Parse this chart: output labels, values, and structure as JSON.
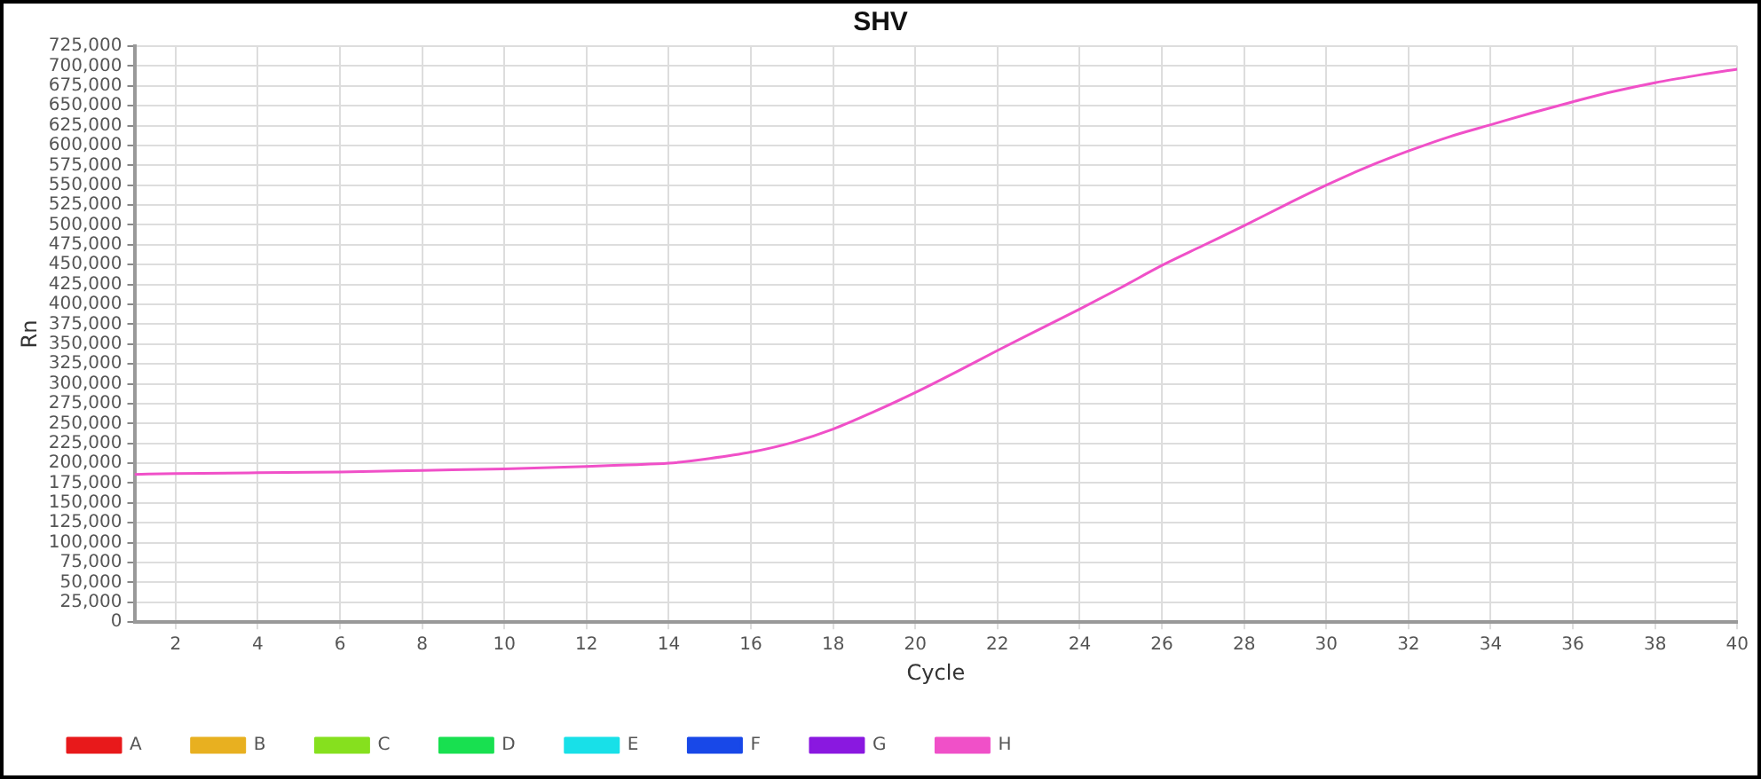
{
  "chart_data": {
    "type": "line",
    "title": "SHV",
    "xlabel": "Cycle",
    "ylabel": "Rn",
    "x": [
      1,
      2,
      4,
      6,
      8,
      10,
      12,
      13,
      14,
      15,
      16,
      17,
      18,
      19,
      20,
      21,
      22,
      23,
      24,
      25,
      26,
      27,
      28,
      29,
      30,
      31,
      32,
      33,
      34,
      35,
      36,
      37,
      38,
      39,
      40
    ],
    "series": [
      {
        "name": "A",
        "color": "#e8191b",
        "values": [
          null,
          null,
          null,
          null,
          null,
          null,
          null,
          null,
          null,
          null,
          null,
          null,
          null,
          null,
          null,
          null,
          null,
          null,
          null,
          null,
          null,
          null,
          null,
          null,
          null,
          null,
          null,
          null,
          null,
          null,
          null,
          null,
          null,
          null,
          null
        ]
      },
      {
        "name": "B",
        "color": "#e8b020",
        "values": [
          null,
          null,
          null,
          null,
          null,
          null,
          null,
          null,
          null,
          null,
          null,
          null,
          null,
          null,
          null,
          null,
          null,
          null,
          null,
          null,
          null,
          null,
          null,
          null,
          null,
          null,
          null,
          null,
          null,
          null,
          null,
          null,
          null,
          null,
          null
        ]
      },
      {
        "name": "C",
        "color": "#86e01e",
        "values": [
          null,
          null,
          null,
          null,
          null,
          null,
          null,
          null,
          null,
          null,
          null,
          null,
          null,
          null,
          null,
          null,
          null,
          null,
          null,
          null,
          null,
          null,
          null,
          null,
          null,
          null,
          null,
          null,
          null,
          null,
          null,
          null,
          null,
          null,
          null
        ]
      },
      {
        "name": "D",
        "color": "#18e050",
        "values": [
          null,
          null,
          null,
          null,
          null,
          null,
          null,
          null,
          null,
          null,
          null,
          null,
          null,
          null,
          null,
          null,
          null,
          null,
          null,
          null,
          null,
          null,
          null,
          null,
          null,
          null,
          null,
          null,
          null,
          null,
          null,
          null,
          null,
          null,
          null
        ]
      },
      {
        "name": "E",
        "color": "#18e0e8",
        "values": [
          null,
          null,
          null,
          null,
          null,
          null,
          null,
          null,
          null,
          null,
          null,
          null,
          null,
          null,
          null,
          null,
          null,
          null,
          null,
          null,
          null,
          null,
          null,
          null,
          null,
          null,
          null,
          null,
          null,
          null,
          null,
          null,
          null,
          null,
          null
        ]
      },
      {
        "name": "F",
        "color": "#1848e8",
        "values": [
          null,
          null,
          null,
          null,
          null,
          null,
          null,
          null,
          null,
          null,
          null,
          null,
          null,
          null,
          null,
          null,
          null,
          null,
          null,
          null,
          null,
          null,
          null,
          null,
          null,
          null,
          null,
          null,
          null,
          null,
          null,
          null,
          null,
          null,
          null
        ]
      },
      {
        "name": "G",
        "color": "#8a18e0",
        "values": [
          null,
          null,
          null,
          null,
          null,
          null,
          null,
          null,
          null,
          null,
          null,
          null,
          null,
          null,
          null,
          null,
          null,
          null,
          null,
          null,
          null,
          null,
          null,
          null,
          null,
          null,
          null,
          null,
          null,
          null,
          null,
          null,
          null,
          null,
          null
        ]
      },
      {
        "name": "H",
        "color": "#f050c8",
        "values": [
          186000,
          187000,
          188000,
          189000,
          191000,
          193000,
          196000,
          198000,
          200000,
          206000,
          214000,
          226000,
          243000,
          265000,
          289000,
          315000,
          342000,
          368000,
          394000,
          421000,
          449000,
          474000,
          499000,
          525000,
          550000,
          573000,
          593000,
          611000,
          626000,
          641000,
          655000,
          668000,
          679000,
          688000,
          696000
        ]
      }
    ],
    "xlim": [
      1,
      40
    ],
    "xticks": [
      2,
      4,
      6,
      8,
      10,
      12,
      14,
      16,
      18,
      20,
      22,
      24,
      26,
      28,
      30,
      32,
      34,
      36,
      38,
      40
    ],
    "ylim": [
      0,
      725000
    ],
    "yticks": [
      0,
      {
        "value": 25000,
        "label": "25,000"
      },
      {
        "value": 50000,
        "label": "50,000"
      },
      {
        "value": 75000,
        "label": "75,000"
      },
      {
        "value": 100000,
        "label": "100,000"
      },
      {
        "value": 125000,
        "label": "125,000"
      },
      {
        "value": 150000,
        "label": "150,000"
      },
      {
        "value": 175000,
        "label": "175,000"
      },
      {
        "value": 200000,
        "label": "200,000"
      },
      {
        "value": 225000,
        "label": "225,000"
      },
      {
        "value": 250000,
        "label": "250,000"
      },
      {
        "value": 275000,
        "label": "275,000"
      },
      {
        "value": 300000,
        "label": "300,000"
      },
      {
        "value": 325000,
        "label": "325,000"
      },
      {
        "value": 350000,
        "label": "350,000"
      },
      {
        "value": 375000,
        "label": "375,000"
      },
      {
        "value": 400000,
        "label": "400,000"
      },
      {
        "value": 425000,
        "label": "425,000"
      },
      {
        "value": 450000,
        "label": "450,000"
      },
      {
        "value": 475000,
        "label": "475,000"
      },
      {
        "value": 500000,
        "label": "500,000"
      },
      {
        "value": 525000,
        "label": "525,000"
      },
      {
        "value": 550000,
        "label": "550,000"
      },
      {
        "value": 575000,
        "label": "575,000"
      },
      {
        "value": 600000,
        "label": "600,000"
      },
      {
        "value": 625000,
        "label": "625,000"
      },
      {
        "value": 650000,
        "label": "650,000"
      },
      {
        "value": 675000,
        "label": "675,000"
      },
      {
        "value": 700000,
        "label": "700,000"
      },
      {
        "value": 725000,
        "label": "725,000"
      }
    ],
    "grid": true,
    "legend": "bottom",
    "marker": "none",
    "line_style": "solid"
  }
}
